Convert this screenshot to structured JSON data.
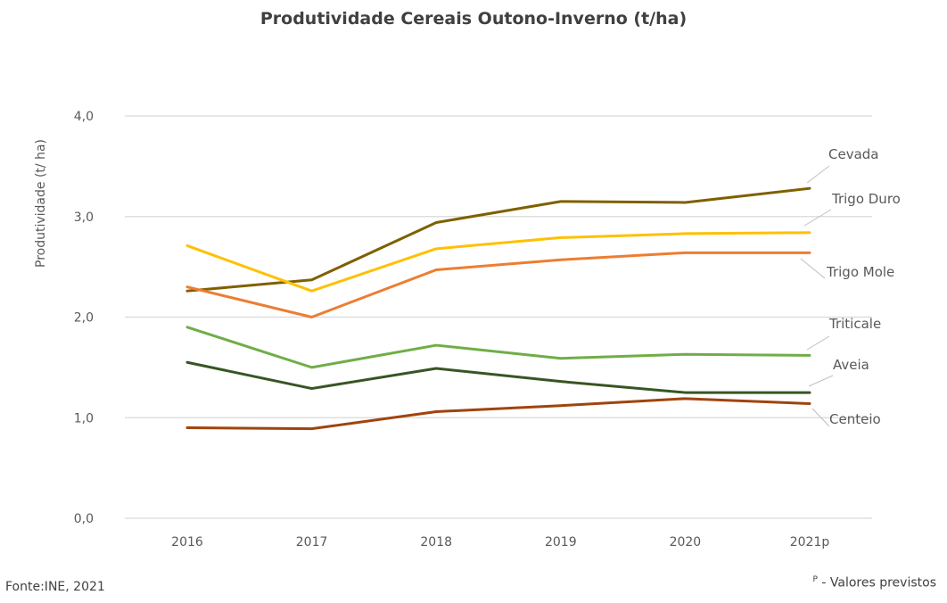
{
  "chart_data": {
    "type": "line",
    "title": "Produtividade Cereais Outono-Inverno (t/ha)",
    "ylabel": "Produtividade  (t/ ha)",
    "xlabel": "",
    "categories": [
      "2016",
      "2017",
      "2018",
      "2019",
      "2020",
      "2021p"
    ],
    "ylim": [
      0,
      4
    ],
    "yticks": [
      "0,0",
      "1,0",
      "2,0",
      "3,0",
      "4,0"
    ],
    "grid": true,
    "legend": "inline labels at right end of lines",
    "series": [
      {
        "name": "Cevada",
        "color": "#7F6000",
        "values": [
          2.26,
          2.37,
          2.94,
          3.15,
          3.14,
          3.28
        ]
      },
      {
        "name": "Trigo Duro",
        "color": "#FFC000",
        "values": [
          2.71,
          2.26,
          2.68,
          2.79,
          2.83,
          2.84
        ]
      },
      {
        "name": "Trigo Mole",
        "color": "#ED7D31",
        "values": [
          2.3,
          2.0,
          2.47,
          2.57,
          2.64,
          2.64
        ]
      },
      {
        "name": "Triticale",
        "color": "#70AD47",
        "values": [
          1.9,
          1.5,
          1.72,
          1.59,
          1.63,
          1.62
        ]
      },
      {
        "name": "Aveia",
        "color": "#375623",
        "values": [
          1.55,
          1.29,
          1.49,
          1.36,
          1.25,
          1.25
        ]
      },
      {
        "name": "Centeio",
        "color": "#A0440C",
        "values": [
          0.9,
          0.89,
          1.06,
          1.12,
          1.19,
          1.14
        ]
      }
    ]
  },
  "footer": {
    "source": "Fonte:INE, 2021",
    "note_marker": "P",
    "note_text": " - Valores previstos"
  }
}
